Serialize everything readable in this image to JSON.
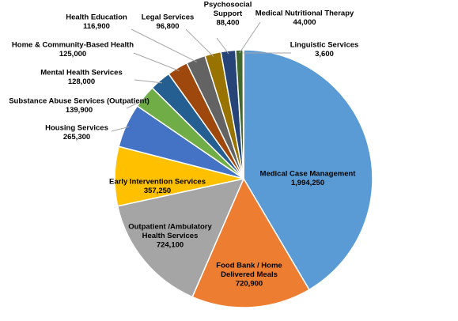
{
  "chart_data": {
    "type": "pie",
    "title": "",
    "start_angle_deg": 0,
    "direction": "clockwise",
    "slices": [
      {
        "label": "Medical Case Management",
        "value": 1994250,
        "value_label": "1,994,250",
        "color": "#5B9BD5"
      },
      {
        "label": "Food Bank / Home Delivered Meals",
        "value": 720900,
        "value_label": "720,900",
        "color": "#ED7D31"
      },
      {
        "label": "Outpatient /Ambulatory Health Services",
        "value": 724100,
        "value_label": "724,100",
        "color": "#A5A5A5"
      },
      {
        "label": "Early Intervention Services",
        "value": 357250,
        "value_label": "357,250",
        "color": "#FFC000"
      },
      {
        "label": "Housing Services",
        "value": 265300,
        "value_label": "265,300",
        "color": "#4472C4"
      },
      {
        "label": "Substance Abuse Services (Outpatient)",
        "value": 139900,
        "value_label": "139,900",
        "color": "#70AD47"
      },
      {
        "label": "Mental Health Services",
        "value": 128000,
        "value_label": "128,000",
        "color": "#255E91"
      },
      {
        "label": "Home  & Community-Based Health",
        "value": 125000,
        "value_label": "125,000",
        "color": "#9E480E"
      },
      {
        "label": "Health Education",
        "value": 116900,
        "value_label": "116,900",
        "color": "#636363"
      },
      {
        "label": "Legal Services",
        "value": 96800,
        "value_label": "96,800",
        "color": "#997300"
      },
      {
        "label": "Psychosocial Support",
        "value": 88400,
        "value_label": "88,400",
        "color": "#264478"
      },
      {
        "label": "Medical Nutritional Therapy",
        "value": 44000,
        "value_label": "44,000",
        "color": "#43682B"
      },
      {
        "label": "Linguistic Services",
        "value": 3600,
        "value_label": "3,600",
        "color": "#7CAFDD"
      }
    ]
  }
}
